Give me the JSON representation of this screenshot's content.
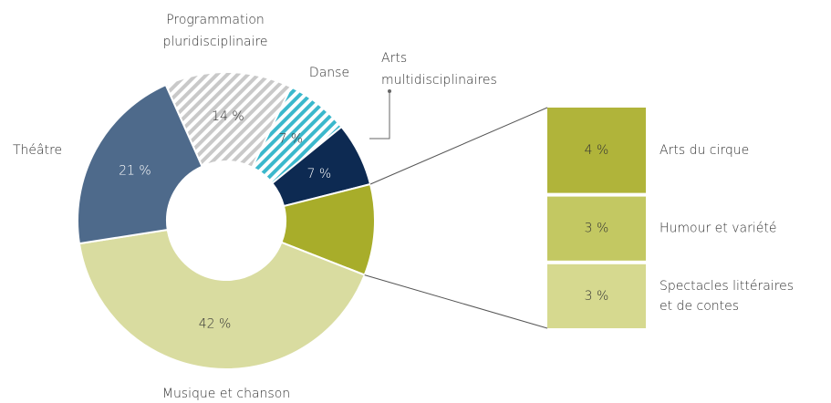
{
  "chart_data": {
    "type": "donut",
    "categories": [
      [
        "Programmation",
        "pluridisciplinaire"
      ],
      [
        "Danse"
      ],
      [
        "Arts",
        "multidisciplinaires"
      ],
      null,
      [
        "Musique et chanson"
      ],
      [
        "Théâtre"
      ]
    ],
    "values": [
      14,
      7,
      7,
      null,
      42,
      21
    ],
    "value_labels": [
      "14 %",
      "7 %",
      "7 %",
      null,
      "42 %",
      "21 %"
    ],
    "colors": [
      "#c9c9c9",
      "#3bb8cc",
      "#0d2a52",
      "#a8ad2a",
      "#d9dca0",
      "#4e6a8b"
    ],
    "patterns": [
      "hatch",
      "hatch",
      null,
      null,
      null,
      null
    ],
    "breakdown": {
      "categories": [
        [
          "Arts du cirque"
        ],
        [
          "Humour et variété"
        ],
        [
          "Spectacles littéraires",
          "et de contes"
        ]
      ],
      "values": [
        4,
        3,
        3
      ],
      "value_labels": [
        "4 %",
        "3 %",
        "3 %"
      ],
      "colors": [
        "#b0b43a",
        "#c3c862",
        "#d6d98f"
      ]
    }
  }
}
